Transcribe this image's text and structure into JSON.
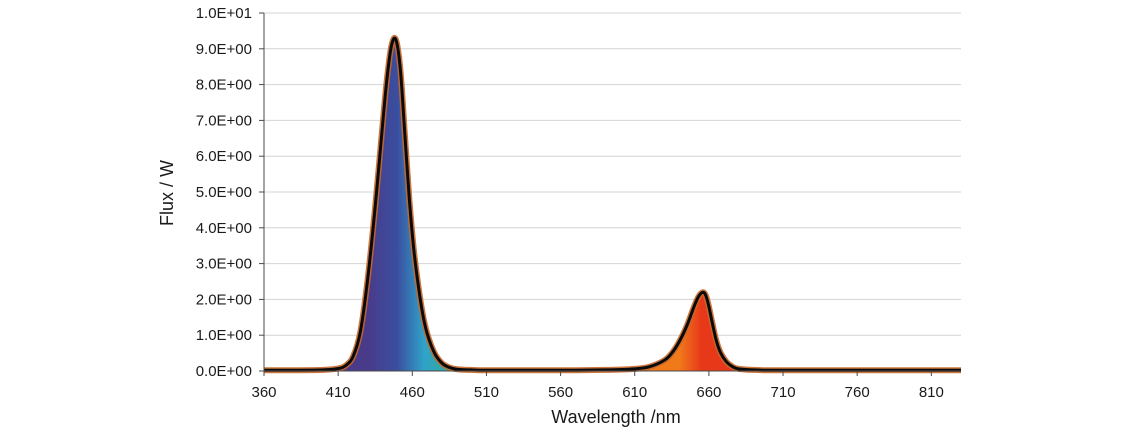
{
  "chart_data": {
    "type": "area",
    "title": "",
    "xlabel": "Wavelength /nm",
    "ylabel": "Flux / W",
    "xlim": [
      360,
      830
    ],
    "ylim": [
      0,
      10
    ],
    "xticks": [
      360,
      410,
      460,
      510,
      560,
      610,
      660,
      710,
      760,
      810
    ],
    "xtick_labels": [
      "360",
      "410",
      "460",
      "510",
      "560",
      "610",
      "660",
      "710",
      "760",
      "810"
    ],
    "yticks": [
      0,
      1,
      2,
      3,
      4,
      5,
      6,
      7,
      8,
      9,
      10
    ],
    "ytick_labels": [
      "0.0E+00",
      "1.0E+00",
      "2.0E+00",
      "3.0E+00",
      "4.0E+00",
      "5.0E+00",
      "6.0E+00",
      "7.0E+00",
      "8.0E+00",
      "9.0E+00",
      "1.0E+01"
    ],
    "grid": true,
    "series": [
      {
        "x": [
          360,
          380,
          400,
          410,
          415,
          420,
          425,
          430,
          435,
          440,
          443,
          446,
          449,
          452,
          455,
          458,
          461,
          464,
          467,
          470,
          475,
          480,
          485,
          490,
          500,
          510,
          530,
          560,
          590,
          610,
          620,
          630,
          635,
          640,
          645,
          650,
          653,
          656,
          658,
          660,
          662,
          665,
          668,
          672,
          676,
          680,
          690,
          700,
          720,
          760,
          800,
          830
        ],
        "y": [
          0.02,
          0.02,
          0.03,
          0.07,
          0.15,
          0.4,
          1.1,
          2.6,
          4.6,
          6.9,
          8.2,
          9.1,
          9.25,
          8.4,
          6.6,
          4.8,
          3.4,
          2.4,
          1.6,
          1.05,
          0.5,
          0.22,
          0.1,
          0.05,
          0.03,
          0.02,
          0.02,
          0.02,
          0.03,
          0.06,
          0.12,
          0.3,
          0.5,
          0.82,
          1.25,
          1.8,
          2.08,
          2.2,
          2.1,
          1.8,
          1.4,
          0.85,
          0.5,
          0.25,
          0.12,
          0.06,
          0.03,
          0.02,
          0.02,
          0.02,
          0.02,
          0.02
        ]
      }
    ],
    "colors": {
      "outline": "#0a0a0a",
      "outline_glow": "#c8682a",
      "violet": "#4a3a8a",
      "blue": "#3a4fa0",
      "cyan": "#2fa3c8",
      "green": "#3cb43c",
      "orange": "#f07a1a",
      "red": "#e8381a"
    }
  }
}
